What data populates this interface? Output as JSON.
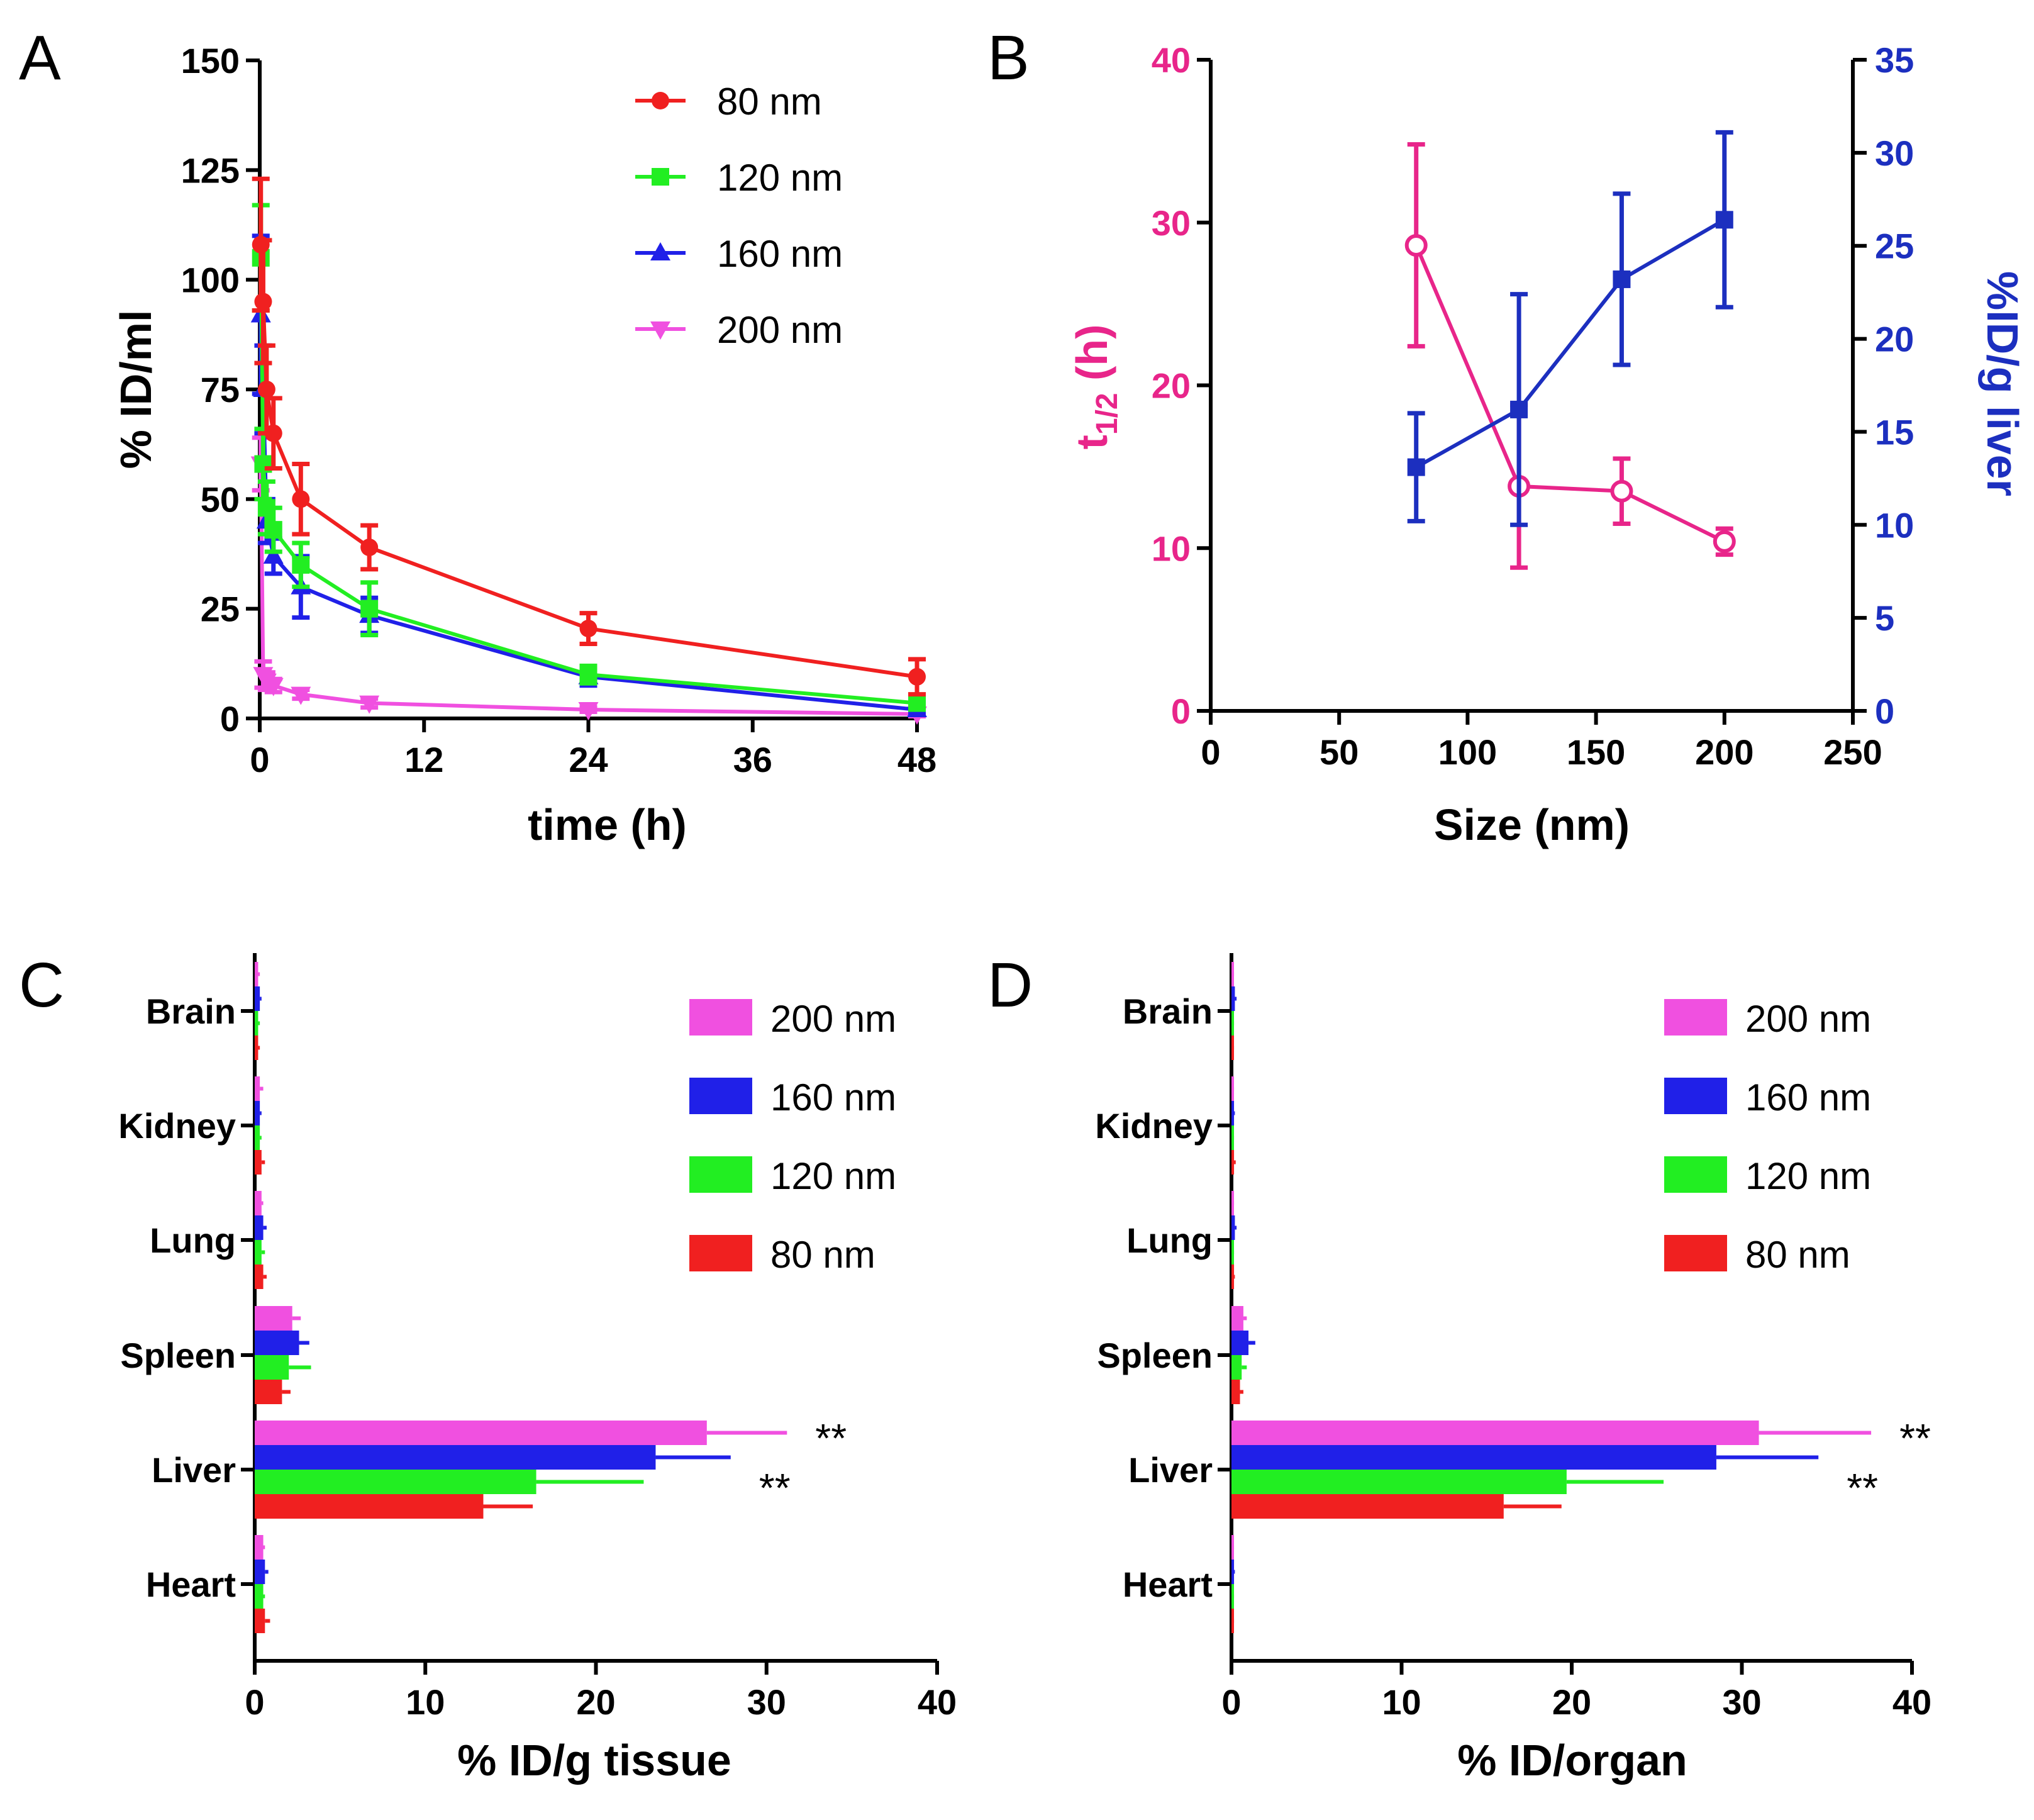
{
  "chart_data": [
    {
      "id": "A",
      "panel_label": "A",
      "type": "line",
      "xlabel": "time (h)",
      "ylabel": "% ID/ml",
      "xlim": [
        0,
        48
      ],
      "ylim": [
        0,
        150
      ],
      "xticks": [
        0,
        12,
        24,
        36,
        48
      ],
      "yticks": [
        0,
        25,
        50,
        75,
        100,
        125,
        150
      ],
      "legend_position": "top-right",
      "series": [
        {
          "name": "80 nm",
          "color": "#f02020",
          "marker": "circle",
          "x": [
            0.08,
            0.25,
            0.5,
            1,
            3,
            8,
            24,
            48
          ],
          "y": [
            108,
            95,
            75,
            65,
            50,
            39,
            20.5,
            9.5
          ],
          "err": [
            15,
            14,
            10,
            8,
            8,
            5,
            3.5,
            4
          ]
        },
        {
          "name": "120 nm",
          "color": "#22ee22",
          "marker": "square",
          "x": [
            0.08,
            0.25,
            0.5,
            1,
            3,
            8,
            24,
            48
          ],
          "y": [
            105,
            58,
            48,
            43,
            35,
            25,
            10,
            3.5
          ],
          "err": [
            12,
            8,
            6,
            5,
            5,
            6,
            2,
            1.5
          ]
        },
        {
          "name": "160 nm",
          "color": "#2020e8",
          "marker": "triangle-up",
          "x": [
            0.08,
            0.25,
            0.5,
            1,
            3,
            8,
            24,
            48
          ],
          "y": [
            92,
            75,
            45,
            37,
            30,
            23.5,
            9.5,
            2
          ],
          "err": [
            18,
            10,
            5,
            4,
            7,
            4,
            2,
            1
          ]
        },
        {
          "name": "200 nm",
          "color": "#f050e0",
          "marker": "triangle-down",
          "x": [
            0.08,
            0.25,
            0.5,
            1,
            3,
            8,
            24,
            48
          ],
          "y": [
            58,
            10,
            8.5,
            7.5,
            5.5,
            3.5,
            2,
            1
          ],
          "err": [
            6,
            3,
            2,
            1.5,
            1,
            1,
            0.5,
            0.5
          ]
        }
      ]
    },
    {
      "id": "B",
      "panel_label": "B",
      "type": "line",
      "xlabel": "Size (nm)",
      "ylabel_left_main": "t",
      "ylabel_left_sub": "1/2",
      "ylabel_left_rest": " (h)",
      "ylabel_right": "%ID/g liver",
      "xlim": [
        0,
        250
      ],
      "ylim_left": [
        0,
        40
      ],
      "ylim_right": [
        0,
        35
      ],
      "xticks": [
        0,
        50,
        100,
        150,
        200,
        250
      ],
      "yticks_left": [
        0,
        10,
        20,
        30,
        40
      ],
      "yticks_right": [
        0,
        5,
        10,
        15,
        20,
        25,
        30,
        35
      ],
      "series": [
        {
          "name": "t1/2",
          "axis": "left",
          "color": "#e8258a",
          "marker": "open-circle",
          "x": [
            80,
            120,
            160,
            200
          ],
          "y": [
            28.6,
            13.8,
            13.5,
            10.4
          ],
          "err": [
            6.2,
            5.0,
            2.0,
            0.8
          ]
        },
        {
          "name": "%ID/g liver",
          "axis": "right",
          "color": "#1c2fbf",
          "marker": "square",
          "x": [
            80,
            120,
            160,
            200
          ],
          "y": [
            13.1,
            16.2,
            23.2,
            26.4
          ],
          "err": [
            2.9,
            6.2,
            4.6,
            4.7
          ]
        }
      ]
    },
    {
      "id": "C",
      "panel_label": "C",
      "type": "bar",
      "orientation": "horizontal",
      "xlabel": "% ID/g tissue",
      "xlim": [
        0,
        40
      ],
      "xticks": [
        0,
        10,
        20,
        30,
        40
      ],
      "categories": [
        "Brain",
        "Kidney",
        "Lung",
        "Spleen",
        "Liver",
        "Heart"
      ],
      "legend_position": "top-right",
      "series": [
        {
          "name": "200 nm",
          "color": "#f050e0",
          "values": [
            0.2,
            0.3,
            0.4,
            2.2,
            26.5,
            0.5
          ],
          "err": [
            0.1,
            0.2,
            0.1,
            0.5,
            4.7,
            0.1
          ]
        },
        {
          "name": "160 nm",
          "color": "#2020e8",
          "values": [
            0.3,
            0.3,
            0.5,
            2.6,
            23.5,
            0.6
          ],
          "err": [
            0.1,
            0.1,
            0.2,
            0.6,
            4.4,
            0.2
          ]
        },
        {
          "name": "120 nm",
          "color": "#22ee22",
          "values": [
            0.2,
            0.3,
            0.4,
            2.0,
            16.5,
            0.5
          ],
          "err": [
            0.1,
            0.1,
            0.2,
            1.3,
            6.3,
            0.1
          ]
        },
        {
          "name": "80 nm",
          "color": "#f02020",
          "values": [
            0.2,
            0.4,
            0.5,
            1.6,
            13.4,
            0.6
          ],
          "err": [
            0.1,
            0.2,
            0.2,
            0.5,
            2.9,
            0.3
          ]
        }
      ],
      "annotations": [
        {
          "text": "**",
          "category": "Liver",
          "series": "200 nm"
        },
        {
          "text": "**",
          "category": "Liver",
          "series": "160 nm"
        }
      ]
    },
    {
      "id": "D",
      "panel_label": "D",
      "type": "bar",
      "orientation": "horizontal",
      "xlabel": "% ID/organ",
      "xlim": [
        0,
        40
      ],
      "xticks": [
        0,
        10,
        20,
        30,
        40
      ],
      "categories": [
        "Brain",
        "Kidney",
        "Lung",
        "Spleen",
        "Liver",
        "Heart"
      ],
      "legend_position": "top-right",
      "series": [
        {
          "name": "200 nm",
          "color": "#f050e0",
          "values": [
            0.1,
            0.1,
            0.1,
            0.7,
            31.0,
            0.1
          ],
          "err": [
            0.05,
            0.05,
            0.05,
            0.2,
            6.6,
            0.05
          ]
        },
        {
          "name": "160 nm",
          "color": "#2020e8",
          "values": [
            0.2,
            0.15,
            0.2,
            1.0,
            28.5,
            0.15
          ],
          "err": [
            0.1,
            0.05,
            0.1,
            0.4,
            6.0,
            0.05
          ]
        },
        {
          "name": "120 nm",
          "color": "#22ee22",
          "values": [
            0.1,
            0.1,
            0.1,
            0.6,
            19.7,
            0.1
          ],
          "err": [
            0.05,
            0.05,
            0.05,
            0.3,
            5.7,
            0.05
          ]
        },
        {
          "name": "80 nm",
          "color": "#f02020",
          "values": [
            0.1,
            0.15,
            0.15,
            0.5,
            16.0,
            0.1
          ],
          "err": [
            0.05,
            0.1,
            0.05,
            0.2,
            3.4,
            0.05
          ]
        }
      ],
      "annotations": [
        {
          "text": "**",
          "category": "Liver",
          "series": "200 nm"
        },
        {
          "text": "**",
          "category": "Liver",
          "series": "160 nm"
        }
      ]
    }
  ]
}
